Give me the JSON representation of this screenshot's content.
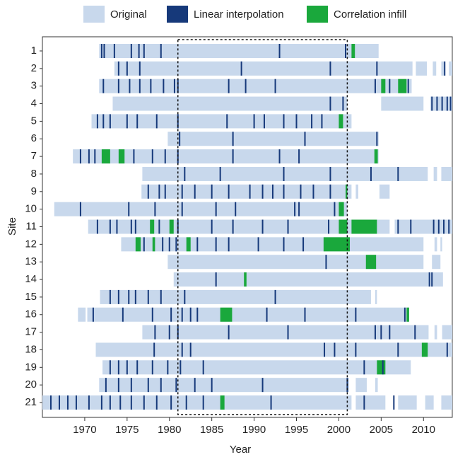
{
  "chart_data": {
    "type": "timeline",
    "xlabel": "Year",
    "ylabel": "Site",
    "xlim": [
      1965,
      2013.4
    ],
    "xticks": [
      1970,
      1975,
      1980,
      1985,
      1990,
      1995,
      2000,
      2005,
      2010
    ],
    "highlight_x": [
      1981,
      2001
    ],
    "categories": [
      "1",
      "2",
      "3",
      "4",
      "5",
      "6",
      "7",
      "8",
      "9",
      "10",
      "11",
      "12",
      "13",
      "14",
      "15",
      "16",
      "17",
      "18",
      "19",
      "20",
      "21"
    ],
    "series": [
      {
        "name": "Original",
        "color": "#c8d8ec",
        "values": [
          [
            [
              1971.7,
              2004.7
            ]
          ],
          [
            [
              1973.5,
              2008.7
            ],
            [
              2009.1,
              2010.4
            ],
            [
              2011.1,
              2011.5
            ],
            [
              2012.1,
              2012.5
            ],
            [
              2013.0,
              2013.4
            ]
          ],
          [
            [
              1971.7,
              2008.6
            ]
          ],
          [
            [
              1973.3,
              2001.0
            ],
            [
              2005.0,
              2010.0
            ],
            [
              2010.8,
              2013.4
            ]
          ],
          [
            [
              1970.8,
              2001.5
            ]
          ],
          [
            [
              1979.8,
              2004.7
            ]
          ],
          [
            [
              1968.6,
              2004.7
            ]
          ],
          [
            [
              1976.8,
              2010.5
            ],
            [
              2011.2,
              2011.6
            ],
            [
              2012.1,
              2013.4
            ]
          ],
          [
            [
              1976.7,
              2001.5
            ],
            [
              2002.0,
              2002.3
            ],
            [
              2004.8,
              2006.0
            ]
          ],
          [
            [
              1966.4,
              2001.0
            ]
          ],
          [
            [
              1970.4,
              2006.0
            ],
            [
              2006.6,
              2013.4
            ]
          ],
          [
            [
              1974.3,
              2010.0
            ],
            [
              2011.3,
              2011.6
            ],
            [
              2012.0,
              2012.2
            ]
          ],
          [
            [
              1979.8,
              2010.0
            ],
            [
              2011.0,
              2012.0
            ]
          ],
          [
            [
              1980.5,
              2012.3
            ]
          ],
          [
            [
              1971.8,
              2003.8
            ],
            [
              2004.3,
              2004.5
            ]
          ],
          [
            [
              1969.2,
              1970.1
            ],
            [
              1970.3,
              2008.3
            ]
          ],
          [
            [
              1976.8,
              2010.6
            ],
            [
              2011.3,
              2011.6
            ],
            [
              2012.2,
              2013.4
            ]
          ],
          [
            [
              1971.3,
              2013.4
            ]
          ],
          [
            [
              1972.1,
              2008.5
            ]
          ],
          [
            [
              1971.7,
              2001.2
            ],
            [
              2002.0,
              2003.3
            ],
            [
              2004.3,
              2004.6
            ]
          ],
          [
            [
              1965.0,
              2001.5
            ],
            [
              2002.0,
              2005.5
            ],
            [
              2007.0,
              2009.2
            ],
            [
              2010.2,
              2011.2
            ],
            [
              2012.1,
              2013.4
            ]
          ]
        ]
      },
      {
        "name": "Linear interpolation",
        "color": "#16397a",
        "values": [
          [
            1972.0,
            1972.3,
            1973.5,
            1975.5,
            1976.4,
            1977.0,
            1979.0,
            1993.0,
            2000.8
          ],
          [
            1974.0,
            1975.0,
            1976.5,
            1988.5,
            1999.0,
            2004.5,
            2012.5
          ],
          [
            1972.2,
            1974.0,
            1975.3,
            1976.5,
            1977.8,
            1979.3,
            1980.6,
            1981.0,
            1987.0,
            1989.0,
            1992.5,
            2004.3,
            2006.0,
            2008.2
          ],
          [
            1999.0,
            2000.5,
            2011.0,
            2011.6,
            2012.2,
            2012.8,
            2013.2
          ],
          [
            1971.5,
            1972.2,
            1973.0,
            1975.0,
            1976.2,
            1978.5,
            1981.0,
            1986.8,
            1990.0,
            1991.2,
            1993.5,
            1995.0,
            1996.8,
            1998.0
          ],
          [
            1981.2,
            1987.5,
            1996.0,
            2004.5
          ],
          [
            1969.5,
            1970.5,
            1971.2,
            1975.8,
            1978.0,
            1979.5,
            1981.0,
            1987.5,
            1993.0,
            1995.3
          ],
          [
            1981.8,
            1986.0,
            1993.5,
            1999.0,
            2003.8,
            2007.0
          ],
          [
            1977.5,
            1978.8,
            1979.5,
            1981.5,
            1983.0,
            1985.0,
            1987.0,
            1989.5,
            1991.0,
            1992.2,
            1993.5,
            1995.5,
            1997.0,
            1999.0
          ],
          [
            1969.5,
            1975.2,
            1978.3,
            1981.5,
            1985.5,
            1987.8,
            1994.8,
            1995.3,
            1999.5
          ],
          [
            1971.5,
            1973.0,
            1973.8,
            1975.5,
            1976.0,
            1978.8,
            1981.0,
            1985.0,
            1987.5,
            1991.0,
            1994.0,
            1998.8,
            2007.0,
            2008.5,
            2011.2,
            2011.8,
            2012.4,
            2013.0
          ],
          [
            1977.0,
            1979.2,
            1980.0,
            1980.8,
            1983.3,
            1985.5,
            1987.0,
            1990.5,
            1993.5,
            1995.8
          ],
          [
            1998.5
          ],
          [
            1985.5,
            2010.7,
            2011.0
          ],
          [
            1973.0,
            1974.0,
            1975.2,
            1976.0,
            1977.5,
            1979.0,
            1981.8,
            1992.5
          ],
          [
            1971.0,
            1974.5,
            1978.0,
            1980.2,
            1981.5,
            1982.5,
            1983.3,
            1991.5,
            1996.0,
            2002.0,
            2007.8
          ],
          [
            1978.3,
            1980.0,
            1981.0,
            1987.0,
            1994.0,
            2004.3,
            2005.0,
            2006.0,
            2009.0
          ],
          [
            1978.2,
            1981.5,
            1982.5,
            1998.3,
            1999.5,
            2002.0,
            2007.0,
            2012.8
          ],
          [
            1973.0,
            1974.0,
            1975.0,
            1976.2,
            1978.0,
            1979.8,
            1981.3,
            1984.0,
            2003.0,
            2005.2
          ],
          [
            1972.5,
            1974.0,
            1975.5,
            1977.5,
            1979.0,
            1980.8,
            1983.0,
            1985.0,
            1991.0,
            2001.0
          ],
          [
            1966.0,
            1967.0,
            1968.0,
            1969.0,
            1970.5,
            1972.0,
            1973.0,
            1974.2,
            1975.5,
            1977.0,
            1978.5,
            1980.2,
            1982.0,
            1984.0,
            1992.0,
            2003.0,
            2006.5
          ]
        ]
      },
      {
        "name": "Correlation infill",
        "color": "#1aa83c",
        "values": [
          [
            [
              2001.5,
              2001.9
            ]
          ],
          [],
          [
            [
              2005.0,
              2005.5
            ],
            [
              2007.0,
              2008.0
            ]
          ],
          [],
          [
            [
              2000.0,
              2000.5
            ]
          ],
          [],
          [
            [
              1972.0,
              1973.0
            ],
            [
              1974.0,
              1974.7
            ],
            [
              2004.2,
              2004.6
            ]
          ],
          [],
          [
            [
              2000.8,
              2001.0
            ]
          ],
          [
            [
              2000.0,
              2000.6
            ]
          ],
          [
            [
              1977.7,
              1978.2
            ],
            [
              1980.0,
              1980.5
            ],
            [
              2000.0,
              2001.0
            ],
            [
              2001.5,
              2004.5
            ]
          ],
          [
            [
              1976.0,
              1976.6
            ],
            [
              1978.0,
              1978.3
            ],
            [
              1982.0,
              1982.5
            ],
            [
              1998.2,
              2001.3
            ]
          ],
          [
            [
              2003.2,
              2004.4
            ]
          ],
          [
            [
              1988.8,
              1989.1
            ]
          ],
          [],
          [
            [
              1986.0,
              1987.4
            ],
            [
              2008.0,
              2008.3
            ]
          ],
          [],
          [
            [
              2009.8,
              2010.5
            ]
          ],
          [
            [
              2004.5,
              2005.5
            ]
          ],
          [],
          [
            [
              1986.0,
              1986.5
            ]
          ]
        ]
      }
    ]
  }
}
